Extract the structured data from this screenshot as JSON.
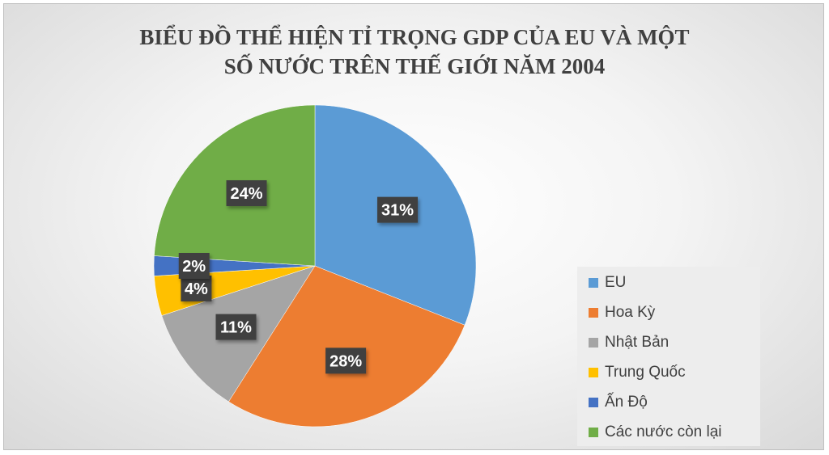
{
  "chart_data": {
    "type": "pie",
    "title_lines": [
      "BIỂU ĐỒ THỂ HIỆN TỈ TRỌNG GDP CỦA EU VÀ MỘT",
      "SỐ NƯỚC TRÊN THẾ GIỚI NĂM 2004"
    ],
    "categories": [
      "EU",
      "Hoa Kỳ",
      "Nhật Bản",
      "Trung Quốc",
      "Ấn Độ",
      "Các nước còn lại"
    ],
    "values": [
      31,
      28,
      11,
      4,
      2,
      24
    ],
    "labels": [
      "31%",
      "28%",
      "11%",
      "4%",
      "2%",
      "24%"
    ],
    "colors": [
      "#5b9bd5",
      "#ed7d31",
      "#a5a5a5",
      "#ffc000",
      "#4472c4",
      "#70ad47"
    ],
    "legend_position": "bottom-right"
  }
}
